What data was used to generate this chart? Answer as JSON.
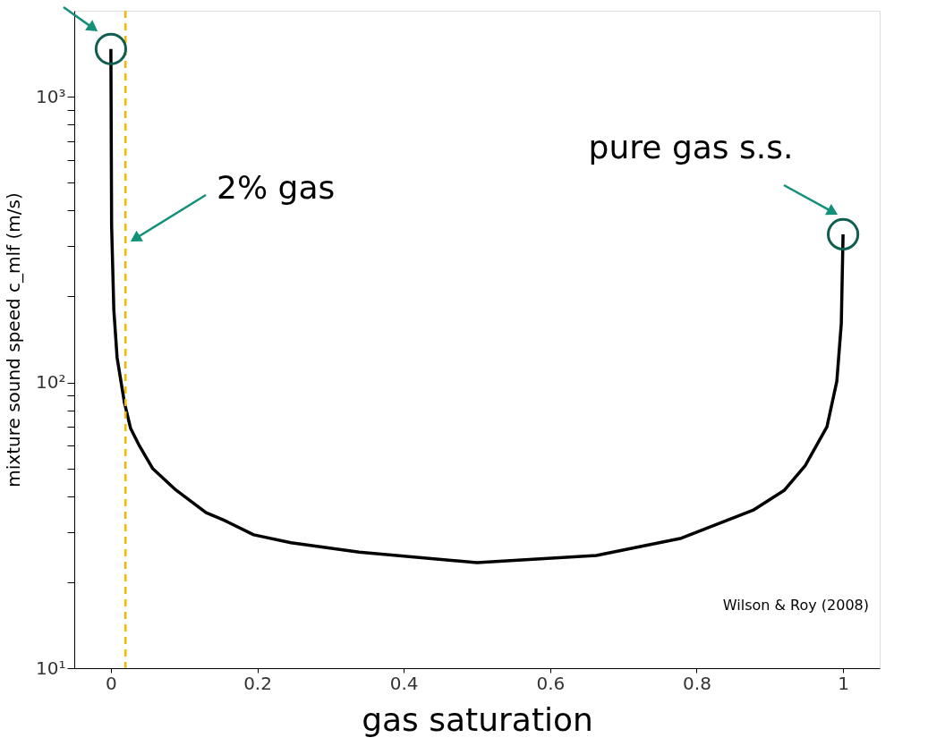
{
  "chart_data": {
    "type": "line",
    "xlabel": "gas saturation",
    "ylabel": "mixture sound speed c_mlf (m/s)",
    "x": [
      0,
      0.001,
      0.004,
      0.0085,
      0.0185,
      0.027,
      0.039,
      0.057,
      0.089,
      0.13,
      0.154,
      0.195,
      0.246,
      0.339,
      0.5,
      0.663,
      0.779,
      0.877,
      0.92,
      0.948,
      0.978,
      0.9915,
      0.9976,
      1
    ],
    "series": [
      {
        "color": "#000000",
        "values": [
          1470,
          353,
          180,
          122,
          85,
          69,
          60,
          50,
          42,
          35,
          33,
          29.3,
          27.5,
          25.5,
          23.4,
          24.8,
          28.5,
          35.7,
          42,
          51,
          70,
          101,
          161,
          330
        ]
      }
    ],
    "log": true,
    "grid": false,
    "marker": "none",
    "line_style": "solid",
    "xlim": [
      -0.05,
      1.05
    ],
    "xticks": [
      0,
      0.2,
      0.4,
      0.6,
      0.8,
      1
    ],
    "ylim": [
      10,
      2000
    ],
    "yticks": [
      {
        "value": 10,
        "label": "10¹"
      },
      {
        "value": 20,
        "label": null
      },
      {
        "value": 30,
        "label": null
      },
      {
        "value": 40,
        "label": null
      },
      {
        "value": 50,
        "label": null
      },
      {
        "value": 60,
        "label": null
      },
      {
        "value": 70,
        "label": null
      },
      {
        "value": 80,
        "label": null
      },
      {
        "value": 90,
        "label": null
      },
      {
        "value": 100,
        "label": "10²"
      },
      {
        "value": 200,
        "label": null
      },
      {
        "value": 300,
        "label": null
      },
      {
        "value": 400,
        "label": null
      },
      {
        "value": 500,
        "label": null
      },
      {
        "value": 600,
        "label": null
      },
      {
        "value": 700,
        "label": null
      },
      {
        "value": 800,
        "label": null
      },
      {
        "value": 900,
        "label": null
      },
      {
        "value": 1000,
        "label": "10³"
      }
    ],
    "ref_lines": [
      {
        "axis": "x",
        "value": 0.02,
        "color": "#f5b800",
        "line_style": "dashed"
      }
    ],
    "annotations": [
      "2% gas",
      "pure gas s.s.",
      "Wilson & Roy (2008)"
    ]
  }
}
